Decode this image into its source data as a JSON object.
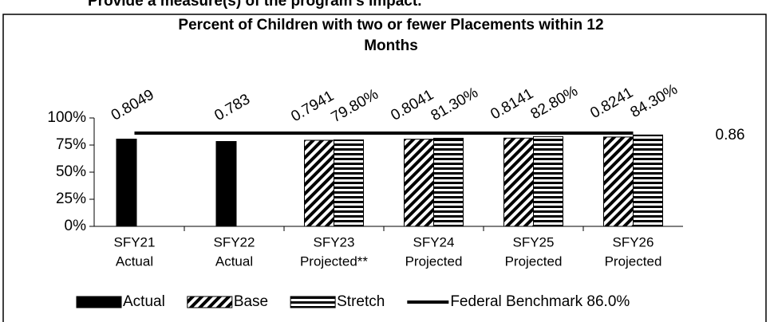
{
  "heading": "Provide a measure(s) of the program’s impact.",
  "chart_data": {
    "type": "bar",
    "title": [
      "Percent of Children with two or fewer Placements within 12",
      "Months"
    ],
    "categories": [
      [
        "SFY21",
        "Actual"
      ],
      [
        "SFY22",
        "Actual"
      ],
      [
        "SFY23",
        "Projected**"
      ],
      [
        "SFY24",
        "Projected"
      ],
      [
        "SFY25",
        "Projected"
      ],
      [
        "SFY26",
        "Projected"
      ]
    ],
    "series": [
      {
        "name": "Actual",
        "type": "bar",
        "color": "#000000",
        "pattern": "solid",
        "values": [
          80.49,
          78.3,
          null,
          null,
          null,
          null
        ],
        "value_labels": [
          "0.8049",
          "0.783",
          null,
          null,
          null,
          null
        ]
      },
      {
        "name": "Base",
        "type": "bar",
        "color": "#000000",
        "pattern": "diagonal",
        "values": [
          null,
          null,
          79.41,
          80.41,
          81.41,
          82.41
        ],
        "value_labels": [
          null,
          null,
          "0.7941",
          "0.8041",
          "0.8141",
          "0.8241"
        ]
      },
      {
        "name": "Stretch",
        "type": "bar",
        "color": "#000000",
        "pattern": "horizontal",
        "values": [
          null,
          null,
          79.8,
          81.3,
          82.8,
          84.3
        ],
        "value_labels": [
          null,
          null,
          "79.80%",
          "81.30%",
          "82.80%",
          "84.30%"
        ]
      },
      {
        "name": "Federal Benchmark 86.0%",
        "type": "line",
        "color": "#000000",
        "values": [
          86,
          86,
          86,
          86,
          86,
          86
        ],
        "end_label": "0.86"
      }
    ],
    "ylim": [
      0,
      100
    ],
    "yticks": [
      {
        "value": 0,
        "label": "0%"
      },
      {
        "value": 25,
        "label": "25%"
      },
      {
        "value": 50,
        "label": "50%"
      },
      {
        "value": 75,
        "label": "75%"
      },
      {
        "value": 100,
        "label": "100%"
      }
    ],
    "legend": "bottom"
  }
}
